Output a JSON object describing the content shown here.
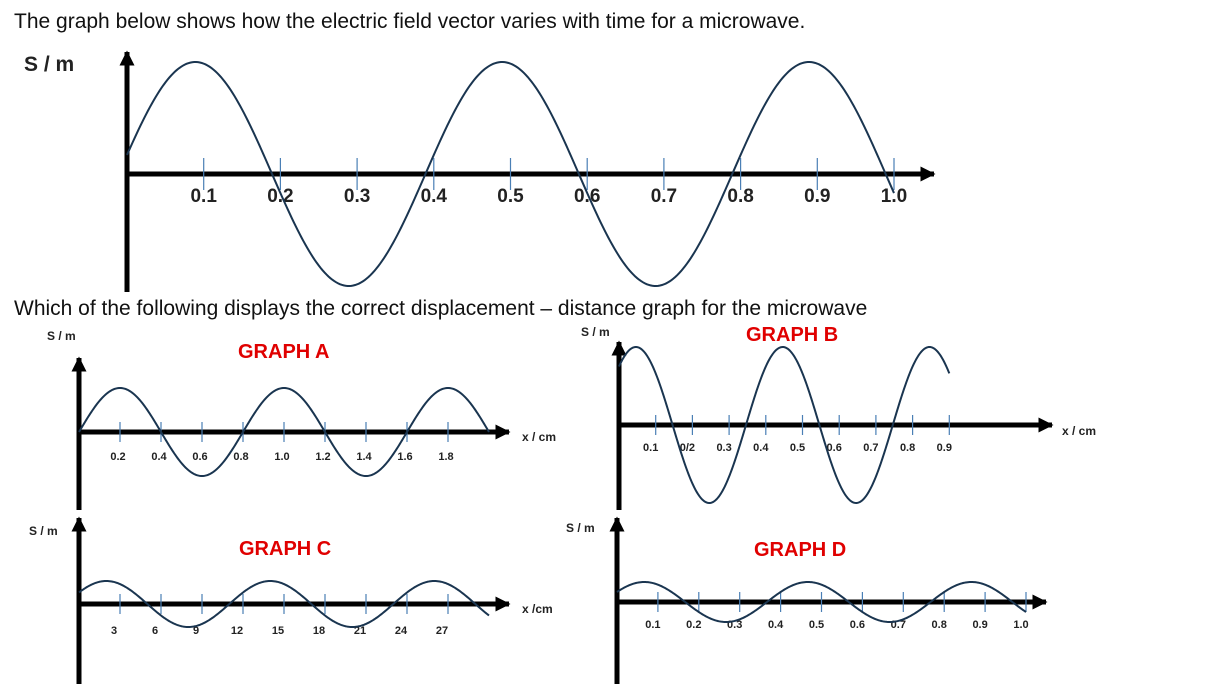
{
  "question": {
    "intro": "The graph below shows how the electric field vector varies with time for a microwave.",
    "prompt": "Which of the following displays the correct displacement – distance graph for the microwave"
  },
  "colors": {
    "axis": "#000000",
    "wave": "#1a3550",
    "tick": "#4a7fb5",
    "title": "#e00000"
  },
  "chart_data": [
    {
      "id": "main",
      "type": "line",
      "ylabel": "S / m",
      "xlabel": "",
      "ticks": [
        "0.1",
        "0.2",
        "0.3",
        "0.4",
        "0.5",
        "0.6",
        "0.7",
        "0.8",
        "0.9",
        "1.0"
      ],
      "xlim": [
        0,
        1.0
      ],
      "series": [
        {
          "period": 0.4,
          "amplitude": 1.0,
          "phase_at_zero": 0.17,
          "x_end": 1.0
        }
      ]
    },
    {
      "id": "graph-a",
      "type": "line",
      "title": "GRAPH A",
      "ylabel": "S / m",
      "xlabel": "x / cm",
      "ticks": [
        "0.2",
        "0.4",
        "0.6",
        "0.8",
        "1.0",
        "1.2",
        "1.4",
        "1.6",
        "1.8"
      ],
      "xlim": [
        0,
        2.0
      ],
      "series": [
        {
          "period": 0.8,
          "amplitude": 1.0,
          "phase_at_zero": 0,
          "x_end": 2.0
        }
      ]
    },
    {
      "id": "graph-b",
      "type": "line",
      "title": "GRAPH B",
      "ylabel": "S / m",
      "xlabel": "x / cm",
      "ticks": [
        "0.1",
        "0/2",
        "0.3",
        "0.4",
        "0.5",
        "0.6",
        "0.7",
        "0.8",
        "0.9"
      ],
      "xlim": [
        0,
        1.0
      ],
      "series": [
        {
          "period": 0.4,
          "amplitude": 1.0,
          "phase_at_zero": 0.75,
          "x_end": 0.9
        }
      ]
    },
    {
      "id": "graph-c",
      "type": "line",
      "title": "GRAPH C",
      "ylabel": "S / m",
      "xlabel": "x /cm",
      "ticks": [
        "3",
        "6",
        "9",
        "12",
        "15",
        "18",
        "21",
        "24",
        "27"
      ],
      "xlim": [
        0,
        30
      ],
      "series": [
        {
          "period": 12,
          "amplitude": 1.0,
          "phase_at_zero": 0.5,
          "x_end": 30
        }
      ]
    },
    {
      "id": "graph-d",
      "type": "line",
      "title": "GRAPH D",
      "ylabel": "S / m",
      "xlabel": "",
      "ticks": [
        "0.1",
        "0.2",
        "0.3",
        "0.4",
        "0.5",
        "0.6",
        "0.7",
        "0.8",
        "0.9",
        "1.0"
      ],
      "xlim": [
        0,
        1.0
      ],
      "series": [
        {
          "period": 0.4,
          "amplitude": 1.0,
          "phase_at_zero": 0.5,
          "x_end": 1.0
        }
      ]
    }
  ]
}
